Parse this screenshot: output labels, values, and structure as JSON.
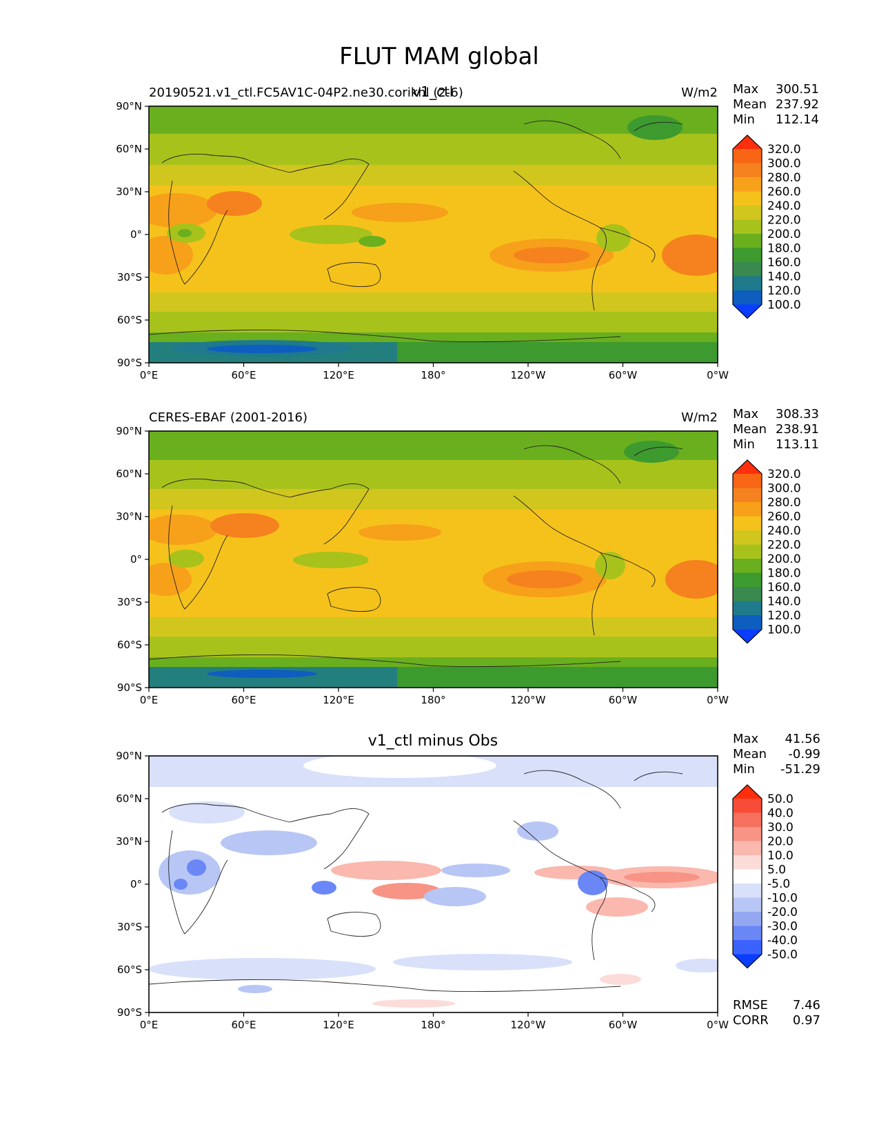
{
  "title": "FLUT MAM global",
  "panels": [
    {
      "id": "test",
      "left_label": "20190521.v1_ctl.FC5AV1C-04P2.ne30.corikhl (2-6)",
      "center_label": "v1_ctl",
      "units": "W/m2",
      "stats": [
        {
          "label": "Max",
          "value": "300.51"
        },
        {
          "label": "Mean",
          "value": "237.92"
        },
        {
          "label": "Min",
          "value": "112.14"
        }
      ],
      "colorbar": {
        "colors": [
          "#0b3dff",
          "#0d5ebf",
          "#1f7a8c",
          "#3a8a4f",
          "#3d9a2e",
          "#6aaf1e",
          "#a8c21c",
          "#d1c61e",
          "#f5c21b",
          "#f7a01a",
          "#f5821e",
          "#f86515",
          "#ff2e0d"
        ],
        "labels": [
          "100.0",
          "120.0",
          "140.0",
          "160.0",
          "180.0",
          "200.0",
          "220.0",
          "240.0",
          "260.0",
          "280.0",
          "300.0",
          "320.0"
        ]
      }
    },
    {
      "id": "ref",
      "left_label": "CERES-EBAF (2001-2016)",
      "center_label": "",
      "units": "W/m2",
      "stats": [
        {
          "label": "Max",
          "value": "308.33"
        },
        {
          "label": "Mean",
          "value": "238.91"
        },
        {
          "label": "Min",
          "value": "113.11"
        }
      ],
      "colorbar": {
        "colors": [
          "#0b3dff",
          "#0d5ebf",
          "#1f7a8c",
          "#3a8a4f",
          "#3d9a2e",
          "#6aaf1e",
          "#a8c21c",
          "#d1c61e",
          "#f5c21b",
          "#f7a01a",
          "#f5821e",
          "#f86515",
          "#ff2e0d"
        ],
        "labels": [
          "100.0",
          "120.0",
          "140.0",
          "160.0",
          "180.0",
          "200.0",
          "220.0",
          "240.0",
          "260.0",
          "280.0",
          "300.0",
          "320.0"
        ]
      }
    },
    {
      "id": "diff",
      "left_label": "",
      "center_label": "v1_ctl minus Obs",
      "units": "",
      "stats": [
        {
          "label": "Max",
          "value": "41.56"
        },
        {
          "label": "Mean",
          "value": "-0.99"
        },
        {
          "label": "Min",
          "value": "-51.29"
        }
      ],
      "extra_stats": [
        {
          "label": "RMSE",
          "value": "7.46"
        },
        {
          "label": "CORR",
          "value": "0.97"
        }
      ],
      "colorbar": {
        "colors": [
          "#0b3dff",
          "#3b62ff",
          "#6a87f5",
          "#94a8f2",
          "#b8c6f5",
          "#d8e0fa",
          "#ffffff",
          "#fcdcd8",
          "#fab8ae",
          "#f79485",
          "#f5705e",
          "#f74d38",
          "#ff2e0d"
        ],
        "labels": [
          "-50.0",
          "-40.0",
          "-30.0",
          "-20.0",
          "-10.0",
          "-5.0",
          "5.0",
          "10.0",
          "20.0",
          "30.0",
          "40.0",
          "50.0"
        ]
      }
    }
  ],
  "axes": {
    "x_ticks": [
      "0°E",
      "60°E",
      "120°E",
      "180°",
      "120°W",
      "60°W",
      "0°W"
    ],
    "y_ticks": [
      "90°N",
      "60°N",
      "30°N",
      "0°",
      "30°S",
      "60°S",
      "90°S"
    ]
  }
}
